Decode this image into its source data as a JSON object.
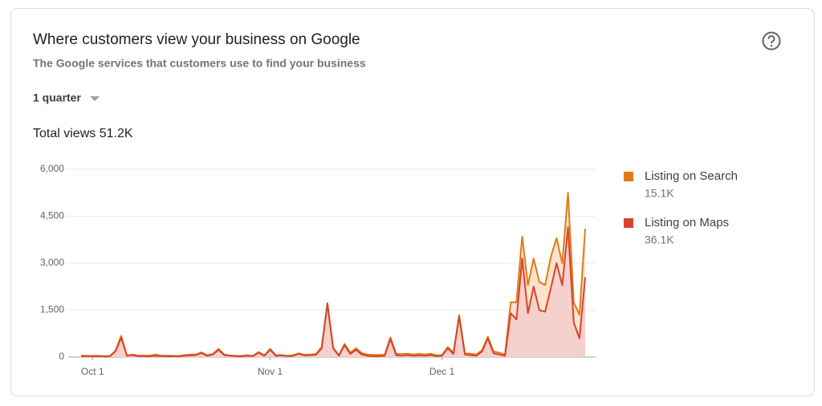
{
  "header": {
    "title": "Where customers view your business on Google",
    "subtitle": "The Google services that customers use to find your business",
    "period": "1 quarter",
    "summary": "Total views 51.2K"
  },
  "chart_data": {
    "type": "stacked-area",
    "categories": [
      null,
      null,
      "Oct 1",
      null,
      null,
      null,
      null,
      null,
      null,
      null,
      null,
      null,
      null,
      null,
      null,
      null,
      null,
      null,
      null,
      null,
      null,
      null,
      null,
      null,
      null,
      null,
      null,
      null,
      null,
      null,
      null,
      null,
      null,
      "Nov 1",
      null,
      null,
      null,
      null,
      null,
      null,
      null,
      null,
      null,
      null,
      null,
      null,
      null,
      null,
      null,
      null,
      null,
      null,
      null,
      null,
      null,
      null,
      null,
      null,
      null,
      null,
      null,
      null,
      null,
      "Dec 1",
      null,
      null,
      null,
      null,
      null,
      null,
      null,
      null,
      null,
      null,
      null,
      null,
      null,
      null,
      null,
      null,
      null,
      null,
      null,
      null,
      null,
      null,
      null,
      null,
      null
    ],
    "series": [
      {
        "name": "Listing on Maps",
        "color": "#d5452d",
        "fill": "#f6d0cc",
        "total_label": "36.1K",
        "values": [
          30,
          30,
          25,
          30,
          20,
          20,
          180,
          620,
          40,
          60,
          30,
          30,
          25,
          40,
          30,
          25,
          30,
          20,
          40,
          50,
          60,
          130,
          40,
          80,
          230,
          60,
          40,
          30,
          20,
          40,
          30,
          140,
          40,
          240,
          40,
          50,
          30,
          40,
          100,
          50,
          60,
          70,
          280,
          1700,
          280,
          40,
          380,
          100,
          230,
          80,
          40,
          30,
          30,
          40,
          580,
          60,
          40,
          60,
          40,
          50,
          40,
          60,
          30,
          40,
          280,
          100,
          1300,
          80,
          60,
          40,
          180,
          600,
          120,
          80,
          40,
          1400,
          1200,
          3150,
          1400,
          2250,
          1500,
          1450,
          2200,
          3000,
          2300,
          4150,
          1100,
          600,
          2550
        ]
      },
      {
        "name": "Listing on Search",
        "color": "#e07b16",
        "fill": "#fbe2cd",
        "total_label": "15.1K",
        "values": [
          15,
          10,
          15,
          10,
          10,
          10,
          20,
          60,
          10,
          20,
          15,
          15,
          20,
          40,
          15,
          20,
          10,
          15,
          20,
          30,
          20,
          20,
          20,
          20,
          30,
          20,
          15,
          10,
          15,
          20,
          10,
          20,
          15,
          20,
          20,
          15,
          10,
          20,
          20,
          20,
          20,
          30,
          40,
          30,
          30,
          20,
          40,
          40,
          50,
          50,
          40,
          40,
          40,
          30,
          50,
          40,
          60,
          50,
          40,
          60,
          40,
          50,
          30,
          20,
          40,
          40,
          40,
          40,
          50,
          40,
          40,
          50,
          60,
          60,
          40,
          350,
          550,
          700,
          900,
          900,
          900,
          850,
          1000,
          800,
          700,
          1100,
          650,
          750,
          1550
        ]
      }
    ],
    "legend_order": [
      1,
      0
    ],
    "ylim": [
      0,
      6000
    ],
    "yticks": [
      0,
      {
        "value": 1500,
        "label": "1,500"
      },
      {
        "value": 3000,
        "label": "3,000"
      },
      {
        "value": 4500,
        "label": "4,500"
      },
      {
        "value": 6000,
        "label": "6,000"
      }
    ],
    "grid": true
  }
}
